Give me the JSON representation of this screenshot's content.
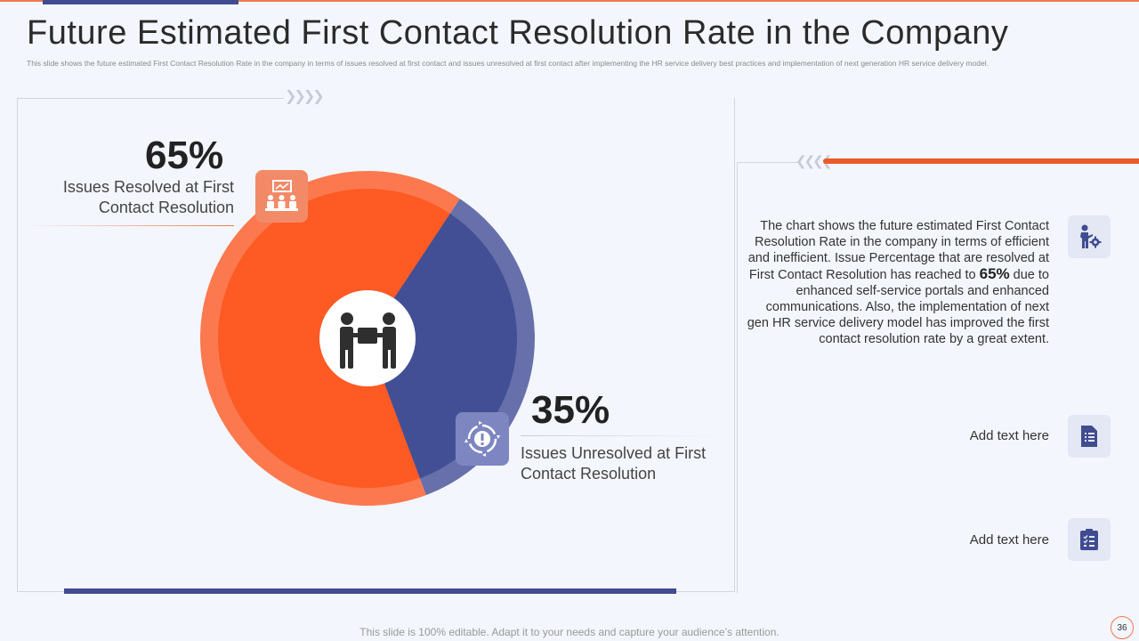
{
  "slide": {
    "title": "Future Estimated First Contact Resolution Rate in the Company",
    "subtitle": "This slide shows the future estimated First Contact Resolution Rate in the company in terms of issues resolved at first contact and issues unresolved at first contact after implementing the HR service delivery best practices and implementation of next generation  HR service delivery model.",
    "footer": "This slide is 100% editable. Adapt it to your needs and capture your audience’s attention.",
    "page_number": "36"
  },
  "chart_data": {
    "type": "pie",
    "title": "",
    "slices": [
      {
        "label": "Issues Resolved at First Contact Resolution",
        "value": 65,
        "display": "65%",
        "color": "#fe5a24"
      },
      {
        "label": "Issues Unresolved at First Contact Resolution",
        "value": 35,
        "display": "35%",
        "color": "#434f95"
      }
    ]
  },
  "description": {
    "part1": "The chart shows the future estimated First Contact Resolution Rate in the company in terms of efficient and inefficient. Issue Percentage that are resolved at First Contact Resolution has reached to",
    "highlight": "65%",
    "part2": "due to enhanced self-service portals and enhanced communications. Also, the implementation of next gen HR service delivery model has improved the first contact resolution rate by a great extent."
  },
  "side_items": [
    {
      "label": "Add text here",
      "icon": "document-icon"
    },
    {
      "label": "Add text here",
      "icon": "clipboard-icon"
    }
  ],
  "colors": {
    "orange": "#fe5a24",
    "navy": "#434f95",
    "accent_line": "#f07850"
  }
}
